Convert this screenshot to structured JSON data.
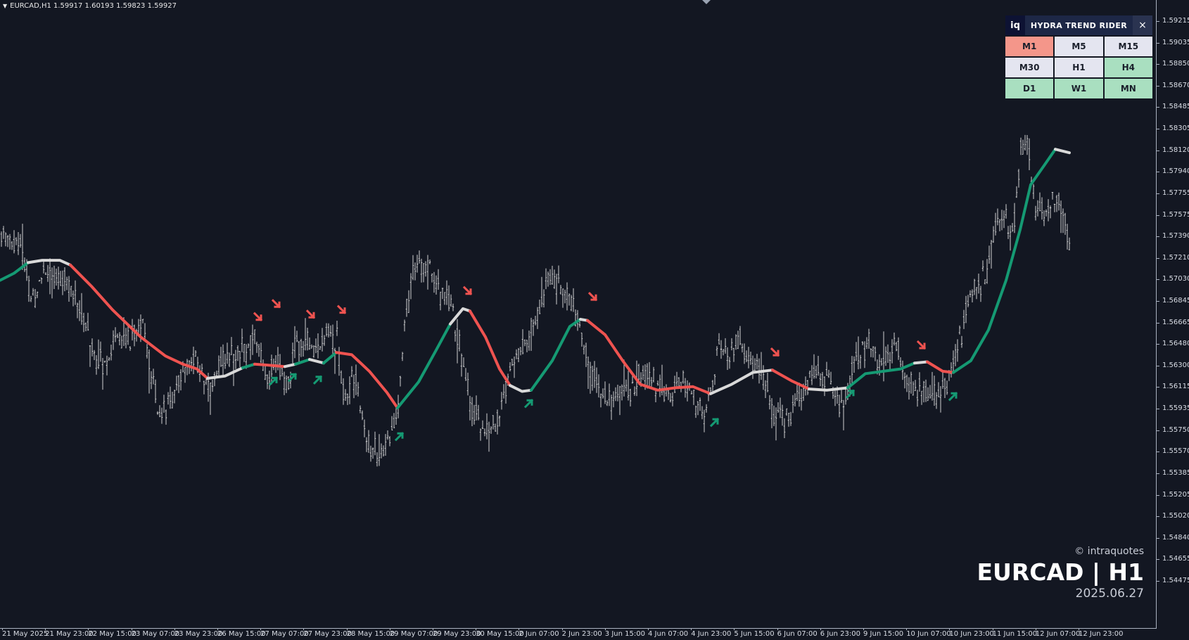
{
  "symbol_bar": {
    "text": "EURCAD,H1  1.59917 1.60193 1.59823 1.59927"
  },
  "y_axis": {
    "ticks": [
      "1.59215",
      "1.59035",
      "1.58850",
      "1.58670",
      "1.58485",
      "1.58305",
      "1.58120",
      "1.57940",
      "1.57755",
      "1.57575",
      "1.57390",
      "1.57210",
      "1.57030",
      "1.56845",
      "1.56665",
      "1.56480",
      "1.56300",
      "1.56115",
      "1.55935",
      "1.55750",
      "1.55570",
      "1.55385",
      "1.55205",
      "1.55020",
      "1.54840",
      "1.54655",
      "1.54475"
    ]
  },
  "x_axis": {
    "ticks": [
      "21 May 2025",
      "21 May 23:00",
      "22 May 15:00",
      "23 May 07:00",
      "23 May 23:00",
      "26 May 15:00",
      "27 May 07:00",
      "27 May 23:00",
      "28 May 15:00",
      "29 May 07:00",
      "29 May 23:00",
      "30 May 15:00",
      "2 Jun 07:00",
      "2 Jun 23:00",
      "3 Jun 15:00",
      "4 Jun 07:00",
      "4 Jun 23:00",
      "5 Jun 15:00",
      "6 Jun 07:00",
      "6 Jun 23:00",
      "9 Jun 15:00",
      "10 Jun 07:00",
      "10 Jun 23:00",
      "11 Jun 15:00",
      "12 Jun 07:00",
      "12 Jun 23:00"
    ]
  },
  "panel": {
    "logo": "iq",
    "title": "HYDRA TREND RIDER",
    "close": "×",
    "timeframes": [
      {
        "label": "M1",
        "state": "bearish",
        "color": "#f4968a"
      },
      {
        "label": "M5",
        "state": "neutral",
        "color": "#e4e5f0"
      },
      {
        "label": "M15",
        "state": "neutral",
        "color": "#e4e5f0"
      },
      {
        "label": "M30",
        "state": "neutral",
        "color": "#e4e5f0"
      },
      {
        "label": "H1",
        "state": "neutral",
        "color": "#e4e5f0"
      },
      {
        "label": "H4",
        "state": "bullish",
        "color": "#a9dfc0"
      },
      {
        "label": "D1",
        "state": "bullish",
        "color": "#a9dfc0"
      },
      {
        "label": "W1",
        "state": "bullish",
        "color": "#a9dfc0"
      },
      {
        "label": "MN",
        "state": "bullish",
        "color": "#a9dfc0"
      }
    ]
  },
  "watermark": {
    "copyright": "© intraquotes",
    "symbol": "EURCAD | H1",
    "date": "2025.06.27"
  },
  "colors": {
    "background": "#131722",
    "bullish": "#159a73",
    "bearish": "#ef5350",
    "neutral": "#d9d9d9",
    "bars": "#e6e6e6"
  },
  "chart_data": {
    "type": "line",
    "series": [
      {
        "role": "trend_line",
        "segments": [
          {
            "state": "bullish",
            "points": [
              [
                0,
                1.5702
              ],
              [
                20,
                1.5708
              ],
              [
                40,
                1.5717
              ]
            ]
          },
          {
            "state": "neutral",
            "points": [
              [
                40,
                1.5717
              ],
              [
                60,
                1.5719
              ],
              [
                85,
                1.5719
              ],
              [
                100,
                1.5715
              ]
            ]
          },
          {
            "state": "bearish",
            "points": [
              [
                100,
                1.5715
              ],
              [
                130,
                1.5697
              ],
              [
                160,
                1.5677
              ],
              [
                200,
                1.5654
              ],
              [
                235,
                1.5638
              ],
              [
                260,
                1.5631
              ],
              [
                280,
                1.5627
              ],
              [
                295,
                1.5619
              ]
            ]
          },
          {
            "state": "neutral",
            "points": [
              [
                295,
                1.5619
              ],
              [
                320,
                1.5621
              ],
              [
                345,
                1.5628
              ]
            ]
          },
          {
            "state": "bullish",
            "points": [
              [
                345,
                1.5628
              ],
              [
                362,
                1.5631
              ]
            ]
          },
          {
            "state": "bearish",
            "points": [
              [
                362,
                1.5631
              ],
              [
                385,
                1.563
              ],
              [
                405,
                1.5629
              ]
            ]
          },
          {
            "state": "neutral",
            "points": [
              [
                405,
                1.5629
              ],
              [
                420,
                1.5631
              ]
            ]
          },
          {
            "state": "bullish",
            "points": [
              [
                420,
                1.5631
              ],
              [
                440,
                1.5635
              ]
            ]
          },
          {
            "state": "neutral",
            "points": [
              [
                440,
                1.5635
              ],
              [
                460,
                1.5632
              ]
            ]
          },
          {
            "state": "bullish",
            "points": [
              [
                460,
                1.5632
              ],
              [
                478,
                1.5641
              ]
            ]
          },
          {
            "state": "bearish",
            "points": [
              [
                478,
                1.5641
              ],
              [
                500,
                1.5639
              ],
              [
                525,
                1.5625
              ],
              [
                550,
                1.5607
              ],
              [
                565,
                1.5594
              ]
            ]
          },
          {
            "state": "bullish",
            "points": [
              [
                565,
                1.5594
              ],
              [
                595,
                1.5616
              ],
              [
                620,
                1.5643
              ],
              [
                640,
                1.5665
              ]
            ]
          },
          {
            "state": "neutral",
            "points": [
              [
                640,
                1.5665
              ],
              [
                658,
                1.5678
              ],
              [
                668,
                1.5676
              ]
            ]
          },
          {
            "state": "bearish",
            "points": [
              [
                668,
                1.5676
              ],
              [
                690,
                1.5654
              ],
              [
                710,
                1.5627
              ],
              [
                725,
                1.5613
              ]
            ]
          },
          {
            "state": "neutral",
            "points": [
              [
                725,
                1.5613
              ],
              [
                742,
                1.5608
              ],
              [
                755,
                1.5609
              ]
            ]
          },
          {
            "state": "bullish",
            "points": [
              [
                755,
                1.5609
              ],
              [
                785,
                1.5634
              ],
              [
                810,
                1.5663
              ],
              [
                825,
                1.5669
              ]
            ]
          },
          {
            "state": "neutral",
            "points": [
              [
                825,
                1.5669
              ],
              [
                835,
                1.5668
              ]
            ]
          },
          {
            "state": "bearish",
            "points": [
              [
                835,
                1.5668
              ],
              [
                860,
                1.5656
              ],
              [
                885,
                1.5634
              ],
              [
                910,
                1.5614
              ],
              [
                935,
                1.5609
              ],
              [
                960,
                1.5611
              ],
              [
                985,
                1.5612
              ],
              [
                1010,
                1.5606
              ]
            ]
          },
          {
            "state": "neutral",
            "points": [
              [
                1010,
                1.5606
              ],
              [
                1040,
                1.5614
              ],
              [
                1070,
                1.5624
              ],
              [
                1098,
                1.5626
              ]
            ]
          },
          {
            "state": "bearish",
            "points": [
              [
                1098,
                1.5626
              ],
              [
                1125,
                1.5617
              ],
              [
                1150,
                1.561
              ]
            ]
          },
          {
            "state": "neutral",
            "points": [
              [
                1150,
                1.561
              ],
              [
                1175,
                1.5609
              ],
              [
                1205,
                1.5611
              ]
            ]
          },
          {
            "state": "bullish",
            "points": [
              [
                1205,
                1.5611
              ],
              [
                1230,
                1.5623
              ],
              [
                1280,
                1.5627
              ],
              [
                1300,
                1.5632
              ]
            ]
          },
          {
            "state": "neutral",
            "points": [
              [
                1300,
                1.5632
              ],
              [
                1318,
                1.5633
              ]
            ]
          },
          {
            "state": "bearish",
            "points": [
              [
                1318,
                1.5633
              ],
              [
                1340,
                1.5625
              ],
              [
                1355,
                1.5624
              ]
            ]
          },
          {
            "state": "bullish",
            "points": [
              [
                1355,
                1.5624
              ],
              [
                1380,
                1.5634
              ],
              [
                1405,
                1.566
              ],
              [
                1430,
                1.5702
              ],
              [
                1450,
                1.5745
              ],
              [
                1465,
                1.5783
              ],
              [
                1485,
                1.58
              ],
              [
                1500,
                1.5813
              ]
            ]
          },
          {
            "state": "neutral",
            "points": [
              [
                1500,
                1.5813
              ],
              [
                1520,
                1.581
              ]
            ]
          }
        ]
      }
    ],
    "signals": [
      {
        "x": 367,
        "price": 1.5671,
        "dir": "down"
      },
      {
        "x": 393,
        "price": 1.5682,
        "dir": "down"
      },
      {
        "x": 442,
        "price": 1.5673,
        "dir": "down"
      },
      {
        "x": 486,
        "price": 1.5677,
        "dir": "down"
      },
      {
        "x": 665,
        "price": 1.5693,
        "dir": "down"
      },
      {
        "x": 843,
        "price": 1.5688,
        "dir": "down"
      },
      {
        "x": 1102,
        "price": 1.5641,
        "dir": "down"
      },
      {
        "x": 1310,
        "price": 1.5647,
        "dir": "down"
      },
      {
        "x": 389,
        "price": 1.5617,
        "dir": "up"
      },
      {
        "x": 416,
        "price": 1.562,
        "dir": "up"
      },
      {
        "x": 452,
        "price": 1.5618,
        "dir": "up"
      },
      {
        "x": 568,
        "price": 1.557,
        "dir": "up"
      },
      {
        "x": 752,
        "price": 1.5598,
        "dir": "up"
      },
      {
        "x": 1016,
        "price": 1.5582,
        "dir": "up"
      },
      {
        "x": 1209,
        "price": 1.5606,
        "dir": "up"
      },
      {
        "x": 1355,
        "price": 1.5604,
        "dir": "up"
      }
    ],
    "price_path": [
      [
        0,
        1.5741
      ],
      [
        30,
        1.5733
      ],
      [
        45,
        1.5682
      ],
      [
        60,
        1.5711
      ],
      [
        80,
        1.5701
      ],
      [
        95,
        1.5708
      ],
      [
        110,
        1.5687
      ],
      [
        130,
        1.5648
      ],
      [
        145,
        1.563
      ],
      [
        165,
        1.5655
      ],
      [
        185,
        1.5651
      ],
      [
        200,
        1.5673
      ],
      [
        210,
        1.5635
      ],
      [
        225,
        1.5592
      ],
      [
        245,
        1.5597
      ],
      [
        255,
        1.5625
      ],
      [
        275,
        1.5633
      ],
      [
        295,
        1.561
      ],
      [
        310,
        1.5631
      ],
      [
        330,
        1.564
      ],
      [
        350,
        1.5645
      ],
      [
        365,
        1.5651
      ],
      [
        375,
        1.5622
      ],
      [
        395,
        1.5632
      ],
      [
        410,
        1.5613
      ],
      [
        420,
        1.5648
      ],
      [
        435,
        1.5653
      ],
      [
        450,
        1.5637
      ],
      [
        465,
        1.5663
      ],
      [
        480,
        1.5649
      ],
      [
        490,
        1.5602
      ],
      [
        505,
        1.5625
      ],
      [
        520,
        1.5569
      ],
      [
        540,
        1.5552
      ],
      [
        555,
        1.5573
      ],
      [
        565,
        1.5592
      ],
      [
        575,
        1.5667
      ],
      [
        590,
        1.5714
      ],
      [
        610,
        1.5718
      ],
      [
        625,
        1.5693
      ],
      [
        640,
        1.5681
      ],
      [
        655,
        1.5641
      ],
      [
        670,
        1.5593
      ],
      [
        690,
        1.5575
      ],
      [
        710,
        1.5585
      ],
      [
        720,
        1.5618
      ],
      [
        740,
        1.5645
      ],
      [
        760,
        1.5665
      ],
      [
        780,
        1.5705
      ],
      [
        800,
        1.5694
      ],
      [
        815,
        1.5681
      ],
      [
        825,
        1.5655
      ],
      [
        840,
        1.5626
      ],
      [
        860,
        1.56
      ],
      [
        880,
        1.5605
      ],
      [
        900,
        1.561
      ],
      [
        915,
        1.5625
      ],
      [
        930,
        1.5615
      ],
      [
        950,
        1.5603
      ],
      [
        970,
        1.5617
      ],
      [
        990,
        1.5599
      ],
      [
        1005,
        1.5589
      ],
      [
        1020,
        1.5648
      ],
      [
        1035,
        1.5633
      ],
      [
        1050,
        1.5655
      ],
      [
        1060,
        1.5638
      ],
      [
        1080,
        1.5628
      ],
      [
        1100,
        1.5587
      ],
      [
        1110,
        1.5581
      ],
      [
        1125,
        1.5593
      ],
      [
        1140,
        1.5608
      ],
      [
        1160,
        1.5626
      ],
      [
        1180,
        1.5617
      ],
      [
        1195,
        1.5597
      ],
      [
        1215,
        1.5628
      ],
      [
        1235,
        1.5652
      ],
      [
        1250,
        1.5627
      ],
      [
        1270,
        1.5649
      ],
      [
        1285,
        1.5626
      ],
      [
        1300,
        1.5611
      ],
      [
        1320,
        1.5604
      ],
      [
        1340,
        1.5606
      ],
      [
        1355,
        1.5631
      ],
      [
        1370,
        1.5668
      ],
      [
        1385,
        1.57
      ],
      [
        1400,
        1.5703
      ],
      [
        1415,
        1.5751
      ],
      [
        1430,
        1.5755
      ],
      [
        1440,
        1.5744
      ],
      [
        1450,
        1.5806
      ],
      [
        1460,
        1.5823
      ],
      [
        1470,
        1.5763
      ],
      [
        1485,
        1.5757
      ],
      [
        1500,
        1.5777
      ],
      [
        1510,
        1.5757
      ],
      [
        1520,
        1.5735
      ]
    ],
    "ylim": [
      1.54475,
      1.59215
    ]
  }
}
